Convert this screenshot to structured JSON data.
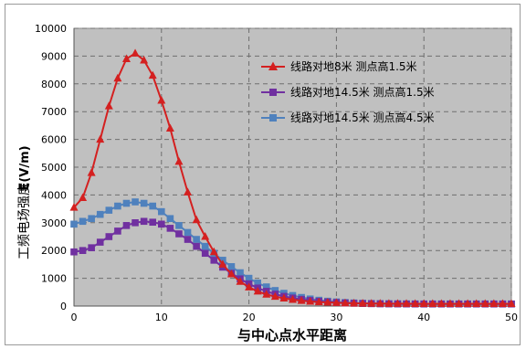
{
  "chart_data": {
    "type": "line",
    "xlabel": "与中心点水平距离",
    "ylabel_units": "E(V/m)",
    "ylabel_name": "工频电场强度",
    "xlim": [
      0,
      50
    ],
    "ylim": [
      0,
      10000
    ],
    "x_ticks": [
      "0",
      "10",
      "20",
      "30",
      "40",
      "50"
    ],
    "y_ticks": [
      "0",
      "1000",
      "2000",
      "3000",
      "4000",
      "5000",
      "6000",
      "7000",
      "8000",
      "9000",
      "10000"
    ],
    "grid": "horizontal and vertical dashed",
    "legend_position": "top-right",
    "x": [
      0,
      1,
      2,
      3,
      4,
      5,
      6,
      7,
      8,
      9,
      10,
      11,
      12,
      13,
      14,
      15,
      16,
      17,
      18,
      19,
      20,
      21,
      22,
      23,
      24,
      25,
      26,
      27,
      28,
      29,
      30,
      31,
      32,
      33,
      34,
      35,
      36,
      37,
      38,
      39,
      40,
      41,
      42,
      43,
      44,
      45,
      46,
      47,
      48,
      49,
      50
    ],
    "series": [
      {
        "name": "线路对地8米 测点高1.5米",
        "color": "#d42020",
        "marker": "triangle",
        "values": [
          3550,
          3900,
          4800,
          6000,
          7200,
          8200,
          8900,
          9100,
          8850,
          8300,
          7400,
          6400,
          5200,
          4100,
          3100,
          2500,
          1950,
          1500,
          1150,
          880,
          680,
          530,
          420,
          340,
          280,
          230,
          195,
          165,
          145,
          130,
          118,
          108,
          100,
          95,
          92,
          90,
          88,
          86,
          85,
          84,
          84,
          84,
          84,
          84,
          84,
          84,
          84,
          84,
          84,
          84,
          84
        ]
      },
      {
        "name": "线路对地14.5米 测点高1.5米",
        "color": "#7030a0",
        "marker": "square",
        "values": [
          1950,
          2000,
          2100,
          2300,
          2500,
          2700,
          2900,
          3000,
          3050,
          3020,
          2950,
          2800,
          2600,
          2400,
          2150,
          1900,
          1650,
          1400,
          1180,
          980,
          800,
          650,
          530,
          430,
          350,
          290,
          240,
          200,
          170,
          145,
          125,
          110,
          100,
          92,
          86,
          82,
          80,
          78,
          76,
          75,
          75,
          75,
          75,
          75,
          75,
          75,
          75,
          75,
          75,
          75,
          75
        ]
      },
      {
        "name": "线路对地14.5米 测点高4.5米",
        "color": "#4f81bd",
        "marker": "square",
        "values": [
          2950,
          3050,
          3150,
          3300,
          3450,
          3600,
          3700,
          3750,
          3700,
          3600,
          3400,
          3150,
          2900,
          2650,
          2400,
          2150,
          1900,
          1650,
          1420,
          1200,
          1000,
          830,
          690,
          560,
          460,
          380,
          310,
          255,
          210,
          175,
          150,
          128,
          112,
          100,
          92,
          86,
          82,
          80,
          78,
          76,
          75,
          75,
          75,
          75,
          75,
          75,
          75,
          75,
          75,
          75,
          75
        ]
      }
    ]
  }
}
